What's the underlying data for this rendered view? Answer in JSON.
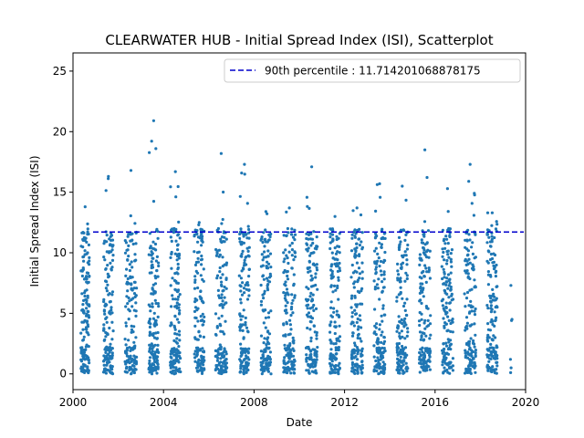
{
  "chart_data": {
    "type": "scatter",
    "title": "CLEARWATER HUB - Initial Spread Index (ISI), Scatterplot",
    "xlabel": "Date",
    "ylabel": "Initial Spread Index (ISI)",
    "xlim": [
      2000.0,
      2020.0
    ],
    "ylim": [
      -1.3,
      26.5
    ],
    "xticks": [
      2000,
      2004,
      2008,
      2012,
      2016,
      2020
    ],
    "xtick_labels": [
      "2000",
      "2004",
      "2008",
      "2012",
      "2016",
      "2020"
    ],
    "yticks": [
      0,
      5,
      10,
      15,
      20,
      25
    ],
    "ytick_labels": [
      "0",
      "5",
      "10",
      "15",
      "20",
      "25"
    ],
    "grid": false,
    "legend_position": "top-right",
    "point_color": "#1f77b4",
    "reference_line": {
      "label": "90th percentile : 11.714201068878175",
      "value": 11.714201068878175,
      "color": "#0000cc",
      "style": "dashed"
    },
    "seasons": [
      {
        "start": 2000.35,
        "end": 2000.72,
        "max": 13.8,
        "n": 150
      },
      {
        "start": 2001.35,
        "end": 2001.78,
        "max": 16.3,
        "n": 150
      },
      {
        "start": 2002.3,
        "end": 2002.82,
        "max": 16.8,
        "n": 150
      },
      {
        "start": 2003.35,
        "end": 2003.78,
        "max": 20.9,
        "n": 150
      },
      {
        "start": 2004.3,
        "end": 2004.75,
        "max": 16.7,
        "n": 150
      },
      {
        "start": 2005.35,
        "end": 2005.8,
        "max": 12.5,
        "n": 140
      },
      {
        "start": 2006.3,
        "end": 2006.8,
        "max": 18.2,
        "n": 150
      },
      {
        "start": 2007.35,
        "end": 2007.8,
        "max": 17.3,
        "n": 150
      },
      {
        "start": 2008.3,
        "end": 2008.75,
        "max": 13.4,
        "n": 140
      },
      {
        "start": 2009.3,
        "end": 2009.82,
        "max": 13.7,
        "n": 150
      },
      {
        "start": 2010.3,
        "end": 2010.8,
        "max": 17.1,
        "n": 150
      },
      {
        "start": 2011.35,
        "end": 2011.8,
        "max": 13.0,
        "n": 140
      },
      {
        "start": 2012.3,
        "end": 2012.8,
        "max": 13.7,
        "n": 150
      },
      {
        "start": 2013.3,
        "end": 2013.8,
        "max": 15.7,
        "n": 150
      },
      {
        "start": 2014.3,
        "end": 2014.8,
        "max": 15.5,
        "n": 150
      },
      {
        "start": 2015.3,
        "end": 2015.8,
        "max": 18.5,
        "n": 150
      },
      {
        "start": 2016.3,
        "end": 2016.8,
        "max": 15.3,
        "n": 150
      },
      {
        "start": 2017.3,
        "end": 2017.8,
        "max": 17.3,
        "n": 150
      },
      {
        "start": 2018.3,
        "end": 2018.75,
        "max": 13.3,
        "n": 150
      }
    ],
    "extra_points": [
      {
        "x": 2019.35,
        "y": 7.3
      },
      {
        "x": 2019.38,
        "y": 4.4
      },
      {
        "x": 2019.4,
        "y": 4.5
      },
      {
        "x": 2019.33,
        "y": 1.2
      },
      {
        "x": 2019.36,
        "y": 0.5
      },
      {
        "x": 2019.34,
        "y": 0.1
      }
    ]
  }
}
